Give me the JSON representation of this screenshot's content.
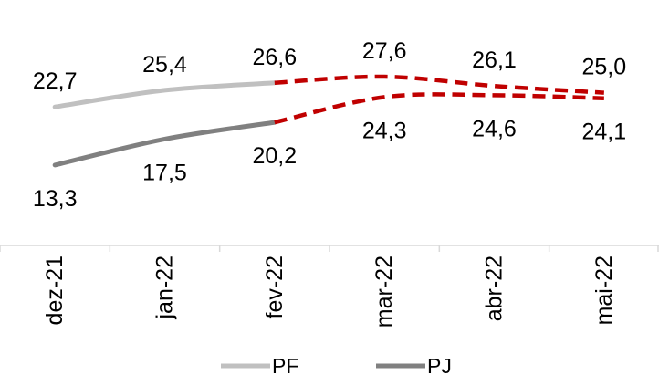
{
  "chart_data": {
    "type": "line",
    "categories": [
      "dez-21",
      "jan-22",
      "fev-22",
      "mar-22",
      "abr-22",
      "mai-22"
    ],
    "series": [
      {
        "name": "PF",
        "values": [
          22.7,
          25.4,
          26.6,
          27.6,
          26.1,
          25.0
        ],
        "labels": [
          "22,7",
          "25,4",
          "26,6",
          "27,6",
          "26,1",
          "25,0"
        ],
        "color": "#c0c0c0",
        "forecast_color": "#c00000"
      },
      {
        "name": "PJ",
        "values": [
          13.3,
          17.5,
          20.2,
          24.3,
          24.6,
          24.1
        ],
        "labels": [
          "13,3",
          "17,5",
          "20,2",
          "24,3",
          "24,6",
          "24,1"
        ],
        "color": "#808080",
        "forecast_color": "#c00000"
      }
    ],
    "solid_through_category": "fev-22",
    "dashed_from_category": "fev-22",
    "ylim": [
      0,
      40
    ],
    "grid": false,
    "legend_position": "bottom",
    "axis_color": "#d9d9d9",
    "title": "",
    "xlabel": "",
    "ylabel": ""
  }
}
